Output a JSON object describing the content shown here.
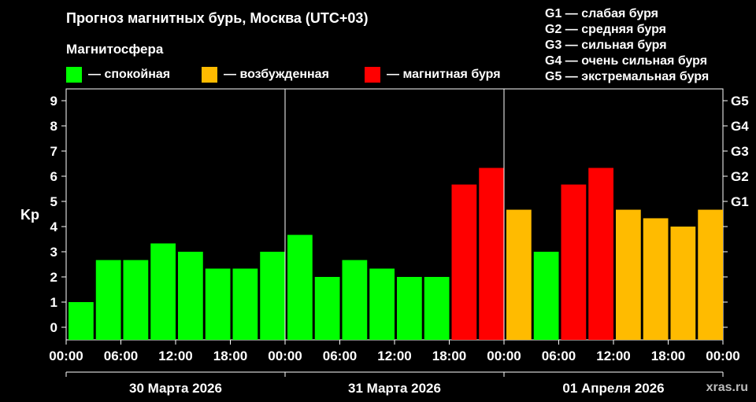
{
  "title": "Прогноз магнитных бурь, Москва (UTC+03)",
  "legend_title": "Магнитосфера",
  "legend": [
    {
      "label": "— спокойная",
      "color": "#00ff00"
    },
    {
      "label": "— возбужденная",
      "color": "#ffbb00"
    },
    {
      "label": "— магнитная буря",
      "color": "#ff0000"
    }
  ],
  "g_scale": [
    "G1 — слабая буря",
    "G2 — средняя буря",
    "G3 — сильная буря",
    "G4 — очень сильная буря",
    "G5 — экстремальная буря"
  ],
  "watermark": "xras.ru",
  "colors": {
    "quiet": "#00ff00",
    "active": "#ffbb00",
    "storm": "#ff0000"
  },
  "chart_data": {
    "type": "bar",
    "ylabel": "Kp",
    "ylim": [
      0,
      9
    ],
    "yticks": [
      "0",
      "1",
      "2",
      "3",
      "4",
      "5",
      "6",
      "7",
      "8",
      "9"
    ],
    "right_ticks": [
      {
        "label": "G1",
        "value": 5
      },
      {
        "label": "G2",
        "value": 6
      },
      {
        "label": "G3",
        "value": 7
      },
      {
        "label": "G4",
        "value": 8
      },
      {
        "label": "G5",
        "value": 9
      }
    ],
    "xticks": [
      "00:00",
      "06:00",
      "12:00",
      "18:00",
      "00:00",
      "06:00",
      "12:00",
      "18:00",
      "00:00",
      "06:00",
      "12:00",
      "18:00",
      "00:00"
    ],
    "days": [
      "30 Марта 2026",
      "31 Марта 2026",
      "01 Апреля 2026"
    ],
    "values": [
      1.0,
      2.67,
      2.67,
      3.33,
      3.0,
      2.33,
      2.33,
      3.0,
      3.67,
      2.0,
      2.67,
      2.33,
      2.0,
      2.0,
      5.67,
      6.33,
      4.67,
      3.0,
      5.67,
      6.33,
      4.67,
      4.33,
      4.0,
      4.67
    ],
    "grid": false
  }
}
